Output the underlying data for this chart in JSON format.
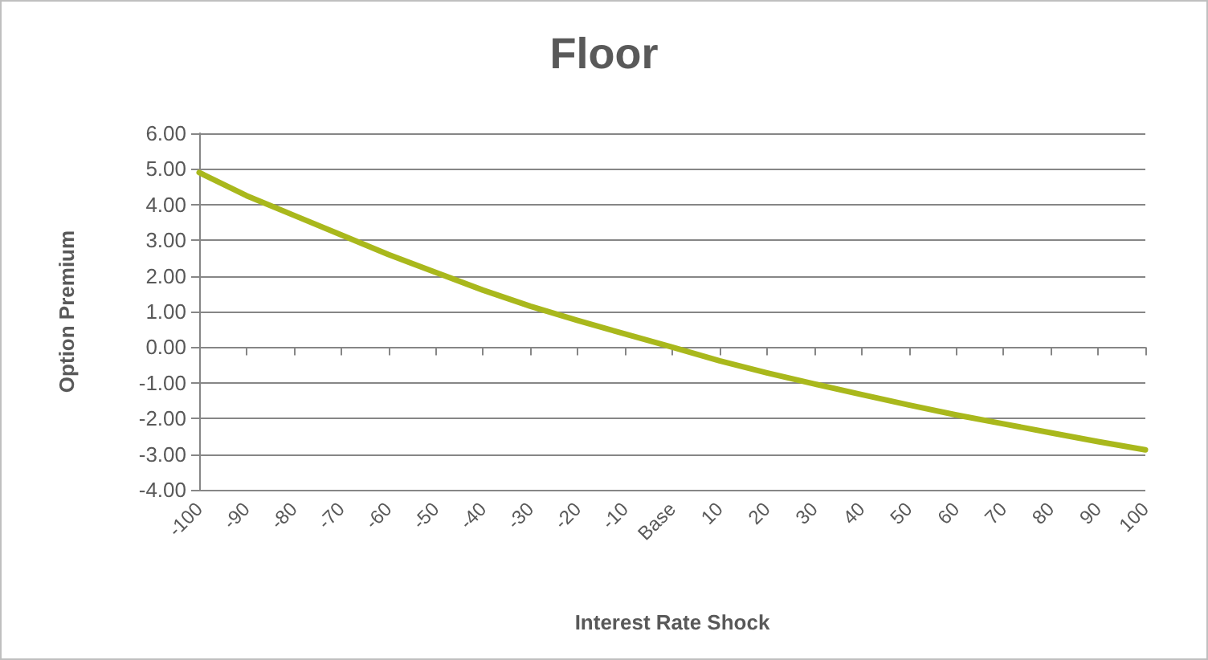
{
  "chart_data": {
    "type": "line",
    "title": "Floor",
    "xlabel": "Interest Rate Shock",
    "ylabel": "Option Premium",
    "categories": [
      "-100",
      "-90",
      "-80",
      "-70",
      "-60",
      "-50",
      "-40",
      "-30",
      "-20",
      "-10",
      "Base",
      "10",
      "20",
      "30",
      "40",
      "50",
      "60",
      "70",
      "80",
      "90",
      "100"
    ],
    "series": [
      {
        "color": "#a9b81c",
        "values": [
          4.9,
          4.25,
          3.7,
          3.15,
          2.6,
          2.1,
          1.6,
          1.15,
          0.75,
          0.37,
          0,
          -0.38,
          -0.72,
          -1.03,
          -1.33,
          -1.62,
          -1.9,
          -2.15,
          -2.4,
          -2.65,
          -2.88
        ]
      }
    ],
    "ylim": [
      -4,
      6
    ],
    "yticks": [
      {
        "value": -4,
        "label": "-4.00"
      },
      {
        "value": -3,
        "label": "-3.00"
      },
      {
        "value": -2,
        "label": "-2.00"
      },
      {
        "value": -1,
        "label": "-1.00"
      },
      {
        "value": 0,
        "label": "0.00"
      },
      {
        "value": 1,
        "label": "1.00"
      },
      {
        "value": 2,
        "label": "2.00"
      },
      {
        "value": 3,
        "label": "3.00"
      },
      {
        "value": 4,
        "label": "4.00"
      },
      {
        "value": 5,
        "label": "5.00"
      },
      {
        "value": 6,
        "label": "6.00"
      }
    ],
    "grid": "y",
    "marker": "none",
    "line_style": "solid"
  }
}
